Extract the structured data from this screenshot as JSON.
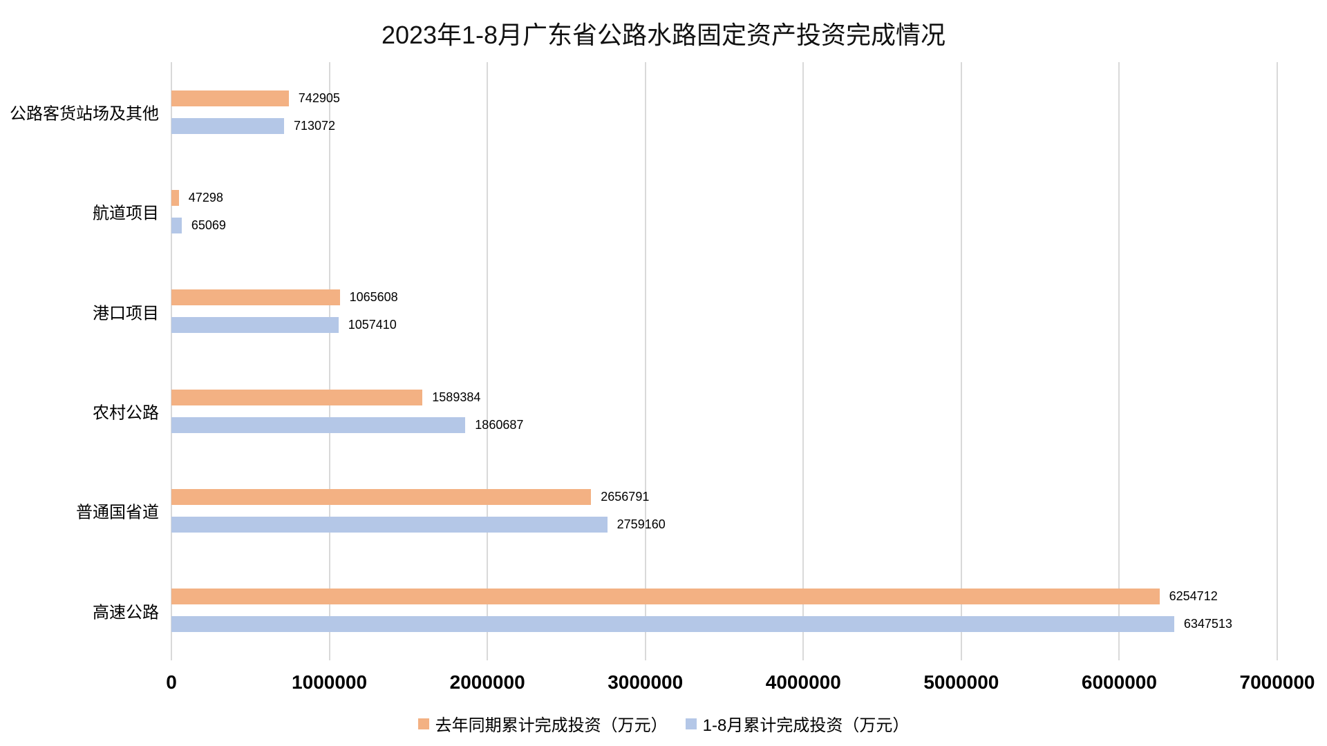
{
  "chart_data": {
    "type": "bar",
    "orientation": "horizontal",
    "title": "2023年1-8月广东省公路水路固定资产投资完成情况",
    "categories": [
      "公路客货站场及其他",
      "航道项目",
      "港口项目",
      "农村公路",
      "普通国省道",
      "高速公路"
    ],
    "categories_order": "top-to-bottom",
    "series": [
      {
        "name": "去年同期累计完成投资（万元）",
        "color": "#F3B183",
        "values": [
          742905,
          47298,
          1065608,
          1589384,
          2656791,
          6254712
        ]
      },
      {
        "name": "1-8月累计完成投资（万元）",
        "color": "#B4C7E7",
        "values": [
          713072,
          65069,
          1057410,
          1860687,
          2759160,
          6347513
        ]
      }
    ],
    "x_axis": {
      "min": 0,
      "max": 7000000,
      "tick_interval": 1000000,
      "ticks": [
        "0",
        "1000000",
        "2000000",
        "3000000",
        "4000000",
        "5000000",
        "6000000",
        "7000000"
      ]
    },
    "grid": "vertical",
    "gridline_color": "#D9D9D9",
    "data_labels": true,
    "legend_position": "bottom",
    "background": "#FFFFFF",
    "text_color": "#000000"
  }
}
